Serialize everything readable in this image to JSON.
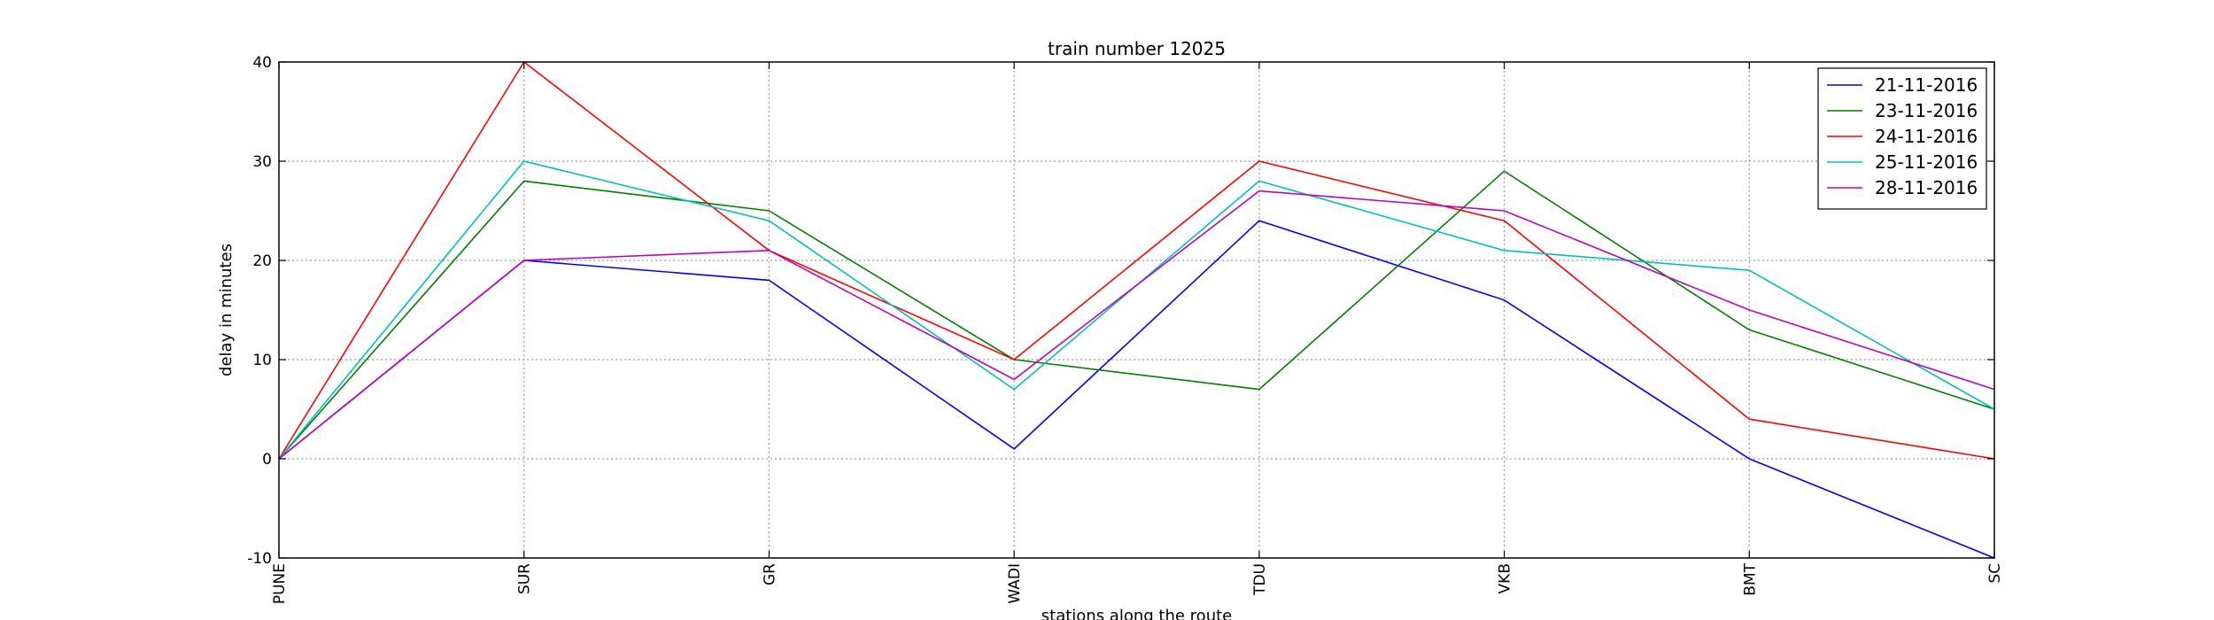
{
  "chart_data": {
    "type": "line",
    "title": "train number 12025",
    "xlabel": "stations along the route",
    "ylabel": "delay in minutes",
    "categories": [
      "PUNE",
      "SUR",
      "GR",
      "WADI",
      "TDU",
      "VKB",
      "BMT",
      "SC"
    ],
    "yticks": [
      -10,
      0,
      10,
      20,
      30,
      40
    ],
    "ylim": [
      -10,
      40
    ],
    "grid": true,
    "legend_position": "top-right",
    "series": [
      {
        "name": "21-11-2016",
        "color": "#0000ff",
        "values": [
          0,
          20,
          18,
          1,
          24,
          16,
          0,
          -10
        ]
      },
      {
        "name": "23-11-2016",
        "color": "#008000",
        "values": [
          0,
          28,
          25,
          10,
          7,
          29,
          13,
          5
        ]
      },
      {
        "name": "24-11-2016",
        "color": "#ff0000",
        "values": [
          0,
          40,
          21,
          10,
          30,
          24,
          4,
          0
        ]
      },
      {
        "name": "25-11-2016",
        "color": "#00bfbf",
        "values": [
          0,
          30,
          24,
          7,
          28,
          21,
          19,
          5
        ]
      },
      {
        "name": "28-11-2016",
        "color": "#bf00bf",
        "values": [
          0,
          20,
          21,
          8,
          27,
          25,
          15,
          7
        ]
      }
    ]
  }
}
